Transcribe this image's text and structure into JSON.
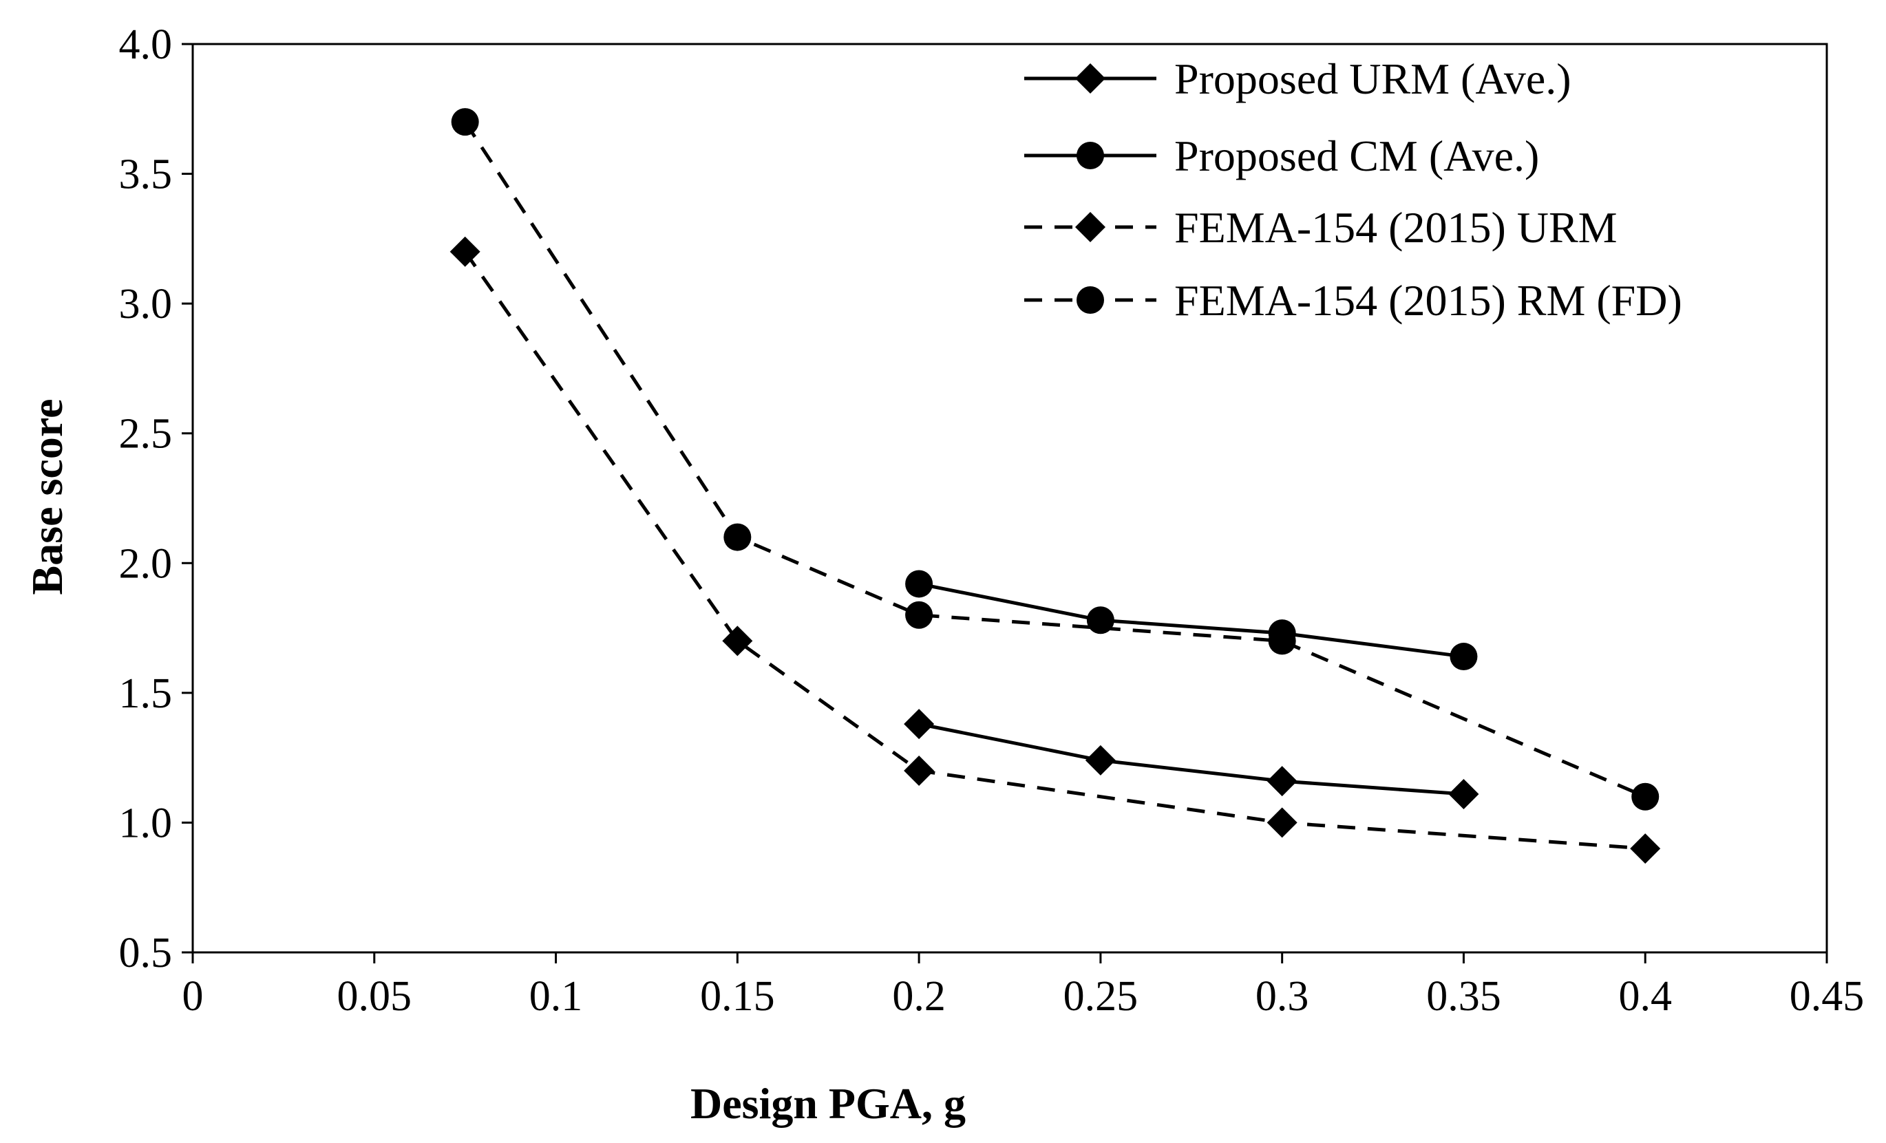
{
  "chart_data": {
    "type": "line",
    "title": "",
    "xlabel": "Design PGA, g",
    "ylabel": "Base score",
    "xlim": [
      0,
      0.45
    ],
    "ylim": [
      0.5,
      4.0
    ],
    "xticks": [
      0,
      0.05,
      0.1,
      0.15,
      0.2,
      0.25,
      0.3,
      0.35,
      0.4,
      0.45
    ],
    "xtick_labels": [
      "0",
      "0.05",
      "0.1",
      "0.15",
      "0.2",
      "0.25",
      "0.3",
      "0.35",
      "0.4",
      "0.45"
    ],
    "yticks": [
      0.5,
      1.0,
      1.5,
      2.0,
      2.5,
      3.0,
      3.5,
      4.0
    ],
    "ytick_labels": [
      "0.5",
      "1.0",
      "1.5",
      "2.0",
      "2.5",
      "3.0",
      "3.5",
      "4.0"
    ],
    "grid": false,
    "legend_position": "top-right",
    "series": [
      {
        "name": "Proposed URM (Ave.)",
        "line": "solid",
        "marker": "diamond",
        "x": [
          0.2,
          0.25,
          0.3,
          0.35
        ],
        "y": [
          1.38,
          1.24,
          1.16,
          1.11
        ]
      },
      {
        "name": "Proposed CM (Ave.)",
        "line": "solid",
        "marker": "circle",
        "x": [
          0.2,
          0.25,
          0.3,
          0.35
        ],
        "y": [
          1.92,
          1.78,
          1.73,
          1.64
        ]
      },
      {
        "name": "FEMA-154 (2015) URM",
        "line": "dashed",
        "marker": "diamond",
        "x": [
          0.075,
          0.15,
          0.2,
          0.3,
          0.4
        ],
        "y": [
          3.2,
          1.7,
          1.2,
          1.0,
          0.9
        ]
      },
      {
        "name": "FEMA-154 (2015) RM (FD)",
        "line": "dashed",
        "marker": "circle",
        "x": [
          0.075,
          0.15,
          0.2,
          0.3,
          0.4
        ],
        "y": [
          3.7,
          2.1,
          1.8,
          1.7,
          1.1
        ]
      }
    ]
  },
  "colors": {
    "ink": "#000000",
    "background": "#ffffff"
  }
}
